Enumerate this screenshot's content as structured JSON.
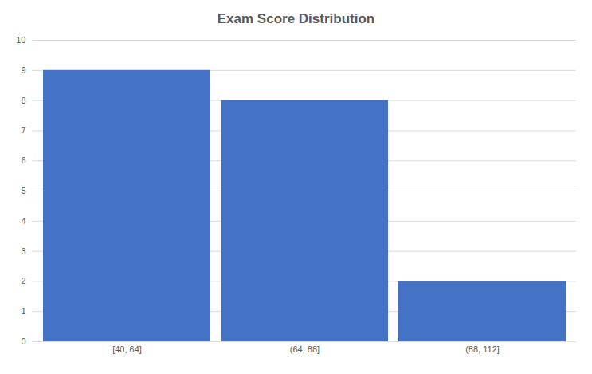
{
  "chart_data": {
    "type": "histogram",
    "title": "Exam Score Distribution",
    "categories": [
      "[40, 64]",
      "(64, 88]",
      "(88, 112]"
    ],
    "values": [
      9,
      8,
      2
    ],
    "color": "#4472c4",
    "ylim": [
      0,
      10
    ],
    "yticks": [
      0,
      1,
      2,
      3,
      4,
      5,
      6,
      7,
      8,
      9,
      10
    ],
    "grid": true
  }
}
